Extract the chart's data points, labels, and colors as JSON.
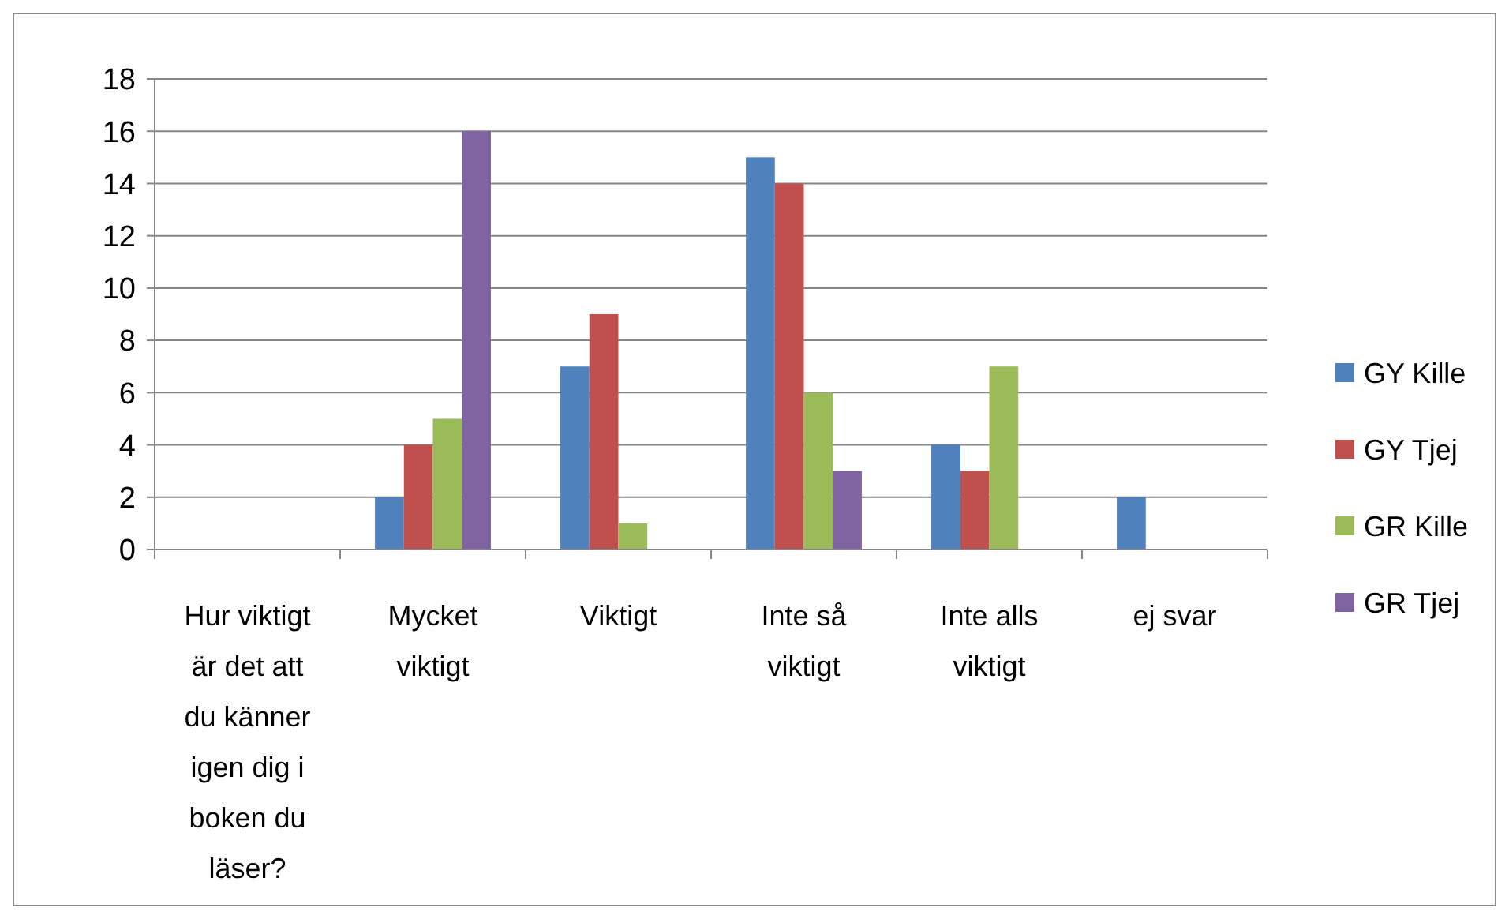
{
  "chart_data": {
    "type": "bar",
    "categories": [
      "Hur viktigt är det att du känner igen dig i boken du läser?",
      "Mycket viktigt",
      "Viktigt",
      "Inte så viktigt",
      "Inte alls viktigt",
      "ej svar"
    ],
    "series": [
      {
        "name": "GY Kille",
        "color": "#4f81bd",
        "values": [
          null,
          2,
          7,
          15,
          4,
          2
        ]
      },
      {
        "name": "GY Tjej",
        "color": "#c0504d",
        "values": [
          null,
          4,
          9,
          14,
          3,
          0
        ]
      },
      {
        "name": "GR Kille",
        "color": "#9bbb59",
        "values": [
          null,
          5,
          1,
          6,
          7,
          0
        ]
      },
      {
        "name": "GR Tjej",
        "color": "#8064a2",
        "values": [
          null,
          16,
          0,
          3,
          0,
          0
        ]
      }
    ],
    "ylim": [
      0,
      18
    ],
    "yticks": [
      0,
      2,
      4,
      6,
      8,
      10,
      12,
      14,
      16,
      18
    ],
    "grid": "y",
    "legend": "right"
  }
}
